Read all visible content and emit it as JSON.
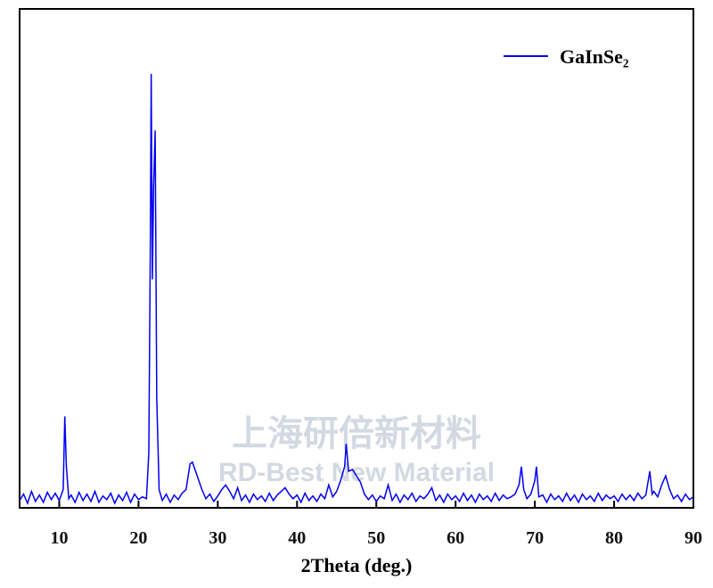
{
  "chart_data": {
    "type": "line",
    "xlabel": "2Theta (deg.)",
    "legend": "upper right",
    "watermark": [
      "上海研倍新材料",
      "RD-Best New Material"
    ],
    "xlim": [
      5,
      90
    ],
    "xticks": [
      10,
      20,
      30,
      40,
      50,
      60,
      70,
      80,
      90
    ],
    "ylim": [
      0,
      546
    ],
    "x": [
      5,
      5.5,
      6,
      6.5,
      7,
      7.5,
      8,
      8.5,
      9,
      9.5,
      10,
      10.5,
      10.7,
      10.9,
      11.2,
      11.5,
      12,
      12.5,
      13,
      13.5,
      14,
      14.5,
      15,
      15.5,
      16,
      16.5,
      17,
      17.5,
      18,
      18.5,
      19,
      19.5,
      20,
      20.5,
      21,
      21.3,
      21.5,
      21.6,
      21.75,
      21.9,
      22.1,
      22.3,
      22.6,
      23,
      23.5,
      24,
      24.5,
      25,
      25.5,
      26,
      26.5,
      26.8,
      27.2,
      27.6,
      28,
      28.5,
      29,
      29.5,
      30,
      30.5,
      31,
      31.5,
      32,
      32.5,
      33,
      33.5,
      34,
      34.5,
      35,
      35.5,
      36,
      36.5,
      37,
      37.5,
      38,
      38.5,
      39,
      39.5,
      40,
      40.5,
      41,
      41.5,
      42,
      42.5,
      43,
      43.5,
      44,
      44.5,
      45,
      45.5,
      46,
      46.2,
      46.5,
      47,
      47.5,
      48,
      48.5,
      49,
      49.5,
      50,
      50.5,
      51,
      51.5,
      52,
      52.5,
      53,
      53.5,
      54,
      54.5,
      55,
      55.5,
      56,
      56.5,
      57,
      57.5,
      58,
      58.5,
      59,
      59.5,
      60,
      60.5,
      61,
      61.5,
      62,
      62.5,
      63,
      63.5,
      64,
      64.5,
      65,
      65.5,
      66,
      66.5,
      67,
      67.5,
      68,
      68.3,
      68.6,
      69,
      69.5,
      70,
      70.2,
      70.5,
      71,
      71.5,
      72,
      72.5,
      73,
      73.5,
      74,
      74.5,
      75,
      75.5,
      76,
      76.5,
      77,
      77.5,
      78,
      78.5,
      79,
      79.5,
      80,
      80.5,
      81,
      81.5,
      82,
      82.5,
      83,
      83.5,
      84,
      84.5,
      84.8,
      85,
      85.5,
      86,
      86.5,
      87,
      87.5,
      88,
      88.5,
      89,
      89.5,
      90
    ],
    "series": [
      {
        "name": "GaInSe₂",
        "color": "#0000ee",
        "values": [
          8,
          15,
          5,
          18,
          7,
          14,
          6,
          17,
          9,
          16,
          8,
          20,
          100,
          45,
          10,
          14,
          6,
          17,
          8,
          15,
          7,
          18,
          6,
          13,
          9,
          16,
          5,
          14,
          8,
          17,
          6,
          15,
          9,
          12,
          10,
          60,
          300,
          475,
          250,
          350,
          413,
          120,
          20,
          8,
          15,
          6,
          14,
          9,
          16,
          20,
          48,
          50,
          40,
          30,
          20,
          10,
          15,
          7,
          13,
          20,
          25,
          18,
          10,
          22,
          8,
          14,
          6,
          15,
          9,
          13,
          7,
          16,
          8,
          14,
          18,
          22,
          15,
          10,
          14,
          6,
          16,
          8,
          13,
          7,
          15,
          10,
          25,
          12,
          18,
          30,
          45,
          70,
          40,
          42,
          35,
          28,
          15,
          9,
          14,
          7,
          13,
          10,
          25,
          8,
          15,
          6,
          14,
          9,
          16,
          7,
          13,
          10,
          15,
          22,
          8,
          14,
          6,
          15,
          9,
          13,
          7,
          16,
          8,
          14,
          6,
          15,
          9,
          13,
          7,
          16,
          8,
          14,
          10,
          12,
          15,
          25,
          45,
          20,
          10,
          15,
          30,
          45,
          12,
          14,
          6,
          15,
          9,
          13,
          7,
          16,
          8,
          14,
          6,
          15,
          9,
          13,
          7,
          16,
          8,
          14,
          10,
          13,
          7,
          15,
          9,
          14,
          8,
          16,
          10,
          14,
          40,
          15,
          18,
          12,
          25,
          35,
          20,
          10,
          14,
          7,
          15,
          9,
          12
        ]
      }
    ]
  }
}
